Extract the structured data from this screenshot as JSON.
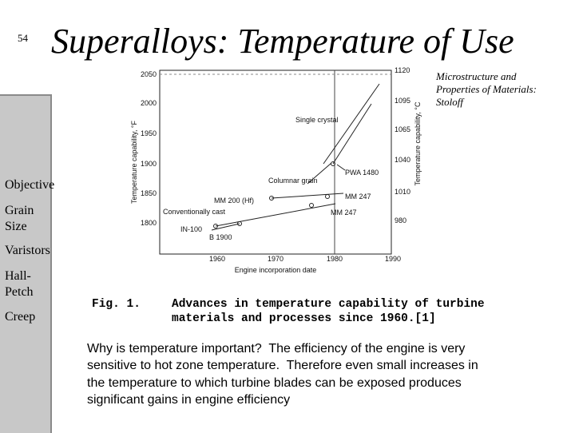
{
  "page_number": "54",
  "title": "Superalloys: Temperature of Use",
  "citation": "Microstructure and Properties of Materials: Stoloff",
  "sidebar": {
    "items": [
      "Objective",
      "Grain Size",
      "Varistors",
      "Hall-Petch",
      "Creep"
    ]
  },
  "figure": {
    "left_axis": {
      "label": "Temperature capability, °F",
      "ticks": [
        "2050",
        "2000",
        "1950",
        "1900",
        "1850",
        "1800"
      ]
    },
    "right_axis": {
      "label": "Temperature capability, °C",
      "ticks": [
        "1120",
        "1095",
        "1065",
        "1040",
        "1010",
        "980"
      ]
    },
    "x_axis": {
      "label": "Engine incorporation date",
      "ticks": [
        "1960",
        "1970",
        "1980",
        "1990"
      ]
    },
    "labels": [
      "Single crystal",
      "PWA 1480",
      "Columnar grain",
      "MM 200 (Hf)",
      "MM 247",
      "Conventionally cast",
      "MM 247",
      "IN-100",
      "B 1900"
    ]
  },
  "caption": {
    "label": "Fig. 1.",
    "lines": [
      "Advances in temperature capability of turbine",
      "materials and processes since 1960.[1]"
    ]
  },
  "body": {
    "lines": [
      "Why is temperature important?  The efficiency of the engine is very",
      "sensitive to hot zone temperature.  Therefore even small increases in",
      "the temperature to which turbine blades can be exposed produces",
      "significant gains in engine efficiency"
    ]
  }
}
